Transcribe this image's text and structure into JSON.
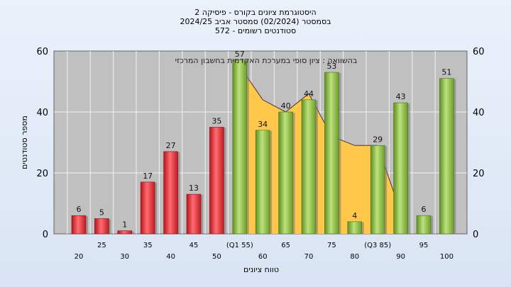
{
  "chart_data": {
    "type": "bar",
    "title_lines": [
      "היסטוגרמת ציונים בקורס - פיסיקה 2",
      "בסמסטר  (02/2024)  סמסטר אביב 2024/25",
      "סטודנטים רשומים - 572"
    ],
    "annotation": "בהשוואה : ציון סופי במערכת האקדמית בחשבון המרכזי",
    "xlabel": "טווח ציונים",
    "ylabel": "מספר סטודנטים",
    "ylim": [
      0,
      60
    ],
    "yticks": [
      0,
      20,
      40,
      60
    ],
    "categories": [
      "20",
      "25",
      "30",
      "35",
      "40",
      "45",
      "50",
      "(Q1 55)",
      "60",
      "65",
      "70",
      "75",
      "80",
      "(Q3 85)",
      "90",
      "95",
      "100"
    ],
    "values": [
      6,
      5,
      1,
      17,
      27,
      13,
      35,
      57,
      34,
      40,
      44,
      53,
      4,
      29,
      43,
      6,
      51
    ],
    "value_labels": [
      "6",
      "5",
      "1",
      "17",
      "27",
      "13",
      "35",
      "57",
      "34",
      "40",
      "44",
      "53",
      "4",
      "29",
      "43",
      "6",
      "51"
    ],
    "bar_colors": [
      "red",
      "red",
      "red",
      "red",
      "red",
      "red",
      "red",
      "green",
      "green",
      "green",
      "green",
      "green",
      "green",
      "green",
      "green",
      "green",
      "green"
    ],
    "comparison_series": {
      "values": [
        null,
        null,
        null,
        null,
        null,
        null,
        null,
        55,
        44,
        40,
        46,
        32,
        29,
        29,
        7,
        null,
        null
      ]
    },
    "colors": {
      "red_bar": "#e8323a",
      "green_bar": "#8fc24a",
      "comparison_fill": "#ffc84a",
      "plot_bg": "#c0c0c0",
      "grid": "#ffffff"
    },
    "grid": true,
    "legend": "none"
  }
}
